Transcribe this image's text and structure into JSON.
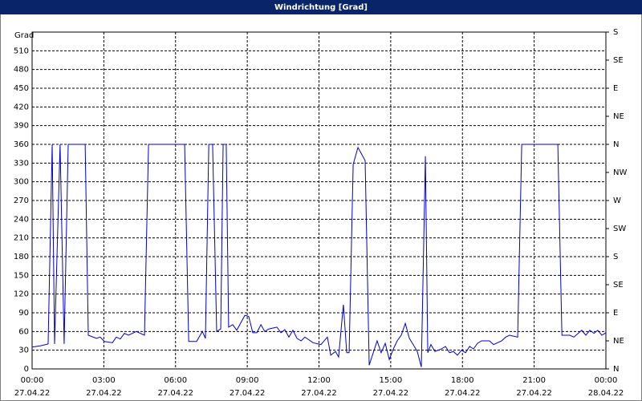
{
  "chart_data": {
    "type": "line",
    "title": "Windrichtung [Grad]",
    "ylabel": "Grad",
    "x": [
      0,
      0.34,
      0.67,
      0.84,
      0.94,
      1.17,
      1.34,
      1.51,
      2.22,
      2.35,
      2.69,
      2.85,
      3.02,
      3.36,
      3.52,
      3.69,
      3.86,
      4.03,
      4.36,
      4.7,
      4.87,
      6.38,
      6.55,
      6.88,
      7.12,
      7.25,
      7.39,
      7.55,
      7.72,
      7.89,
      7.99,
      8.12,
      8.22,
      8.39,
      8.56,
      8.9,
      9.06,
      9.23,
      9.4,
      9.57,
      9.73,
      9.9,
      10.24,
      10.41,
      10.57,
      10.74,
      10.91,
      11.08,
      11.25,
      11.41,
      11.75,
      12.08,
      12.35,
      12.49,
      12.69,
      12.82,
      13.02,
      13.16,
      13.26,
      13.43,
      13.63,
      13.93,
      14.1,
      14.27,
      14.43,
      14.6,
      14.77,
      14.94,
      15.11,
      15.27,
      15.44,
      15.61,
      15.78,
      15.94,
      16.11,
      16.28,
      16.45,
      16.55,
      16.68,
      16.85,
      17.12,
      17.29,
      17.46,
      17.62,
      17.79,
      17.96,
      18.13,
      18.3,
      18.46,
      18.63,
      18.8,
      19.13,
      19.3,
      19.64,
      19.81,
      19.97,
      20.31,
      20.48,
      21.99,
      22.16,
      22.49,
      22.66,
      22.99,
      23.16,
      23.33,
      23.5,
      23.66,
      23.83,
      24
    ],
    "series": [
      {
        "name": "Windrichtung",
        "color": "#0000cc",
        "values": [
          35,
          37,
          40,
          360,
          40,
          360,
          40,
          360,
          360,
          54,
          49,
          51,
          44,
          42,
          51,
          48,
          57,
          54,
          60,
          54,
          360,
          360,
          44,
          44,
          60,
          49,
          360,
          360,
          60,
          64,
          360,
          360,
          67,
          71,
          62,
          86,
          84,
          58,
          58,
          71,
          60,
          64,
          67,
          58,
          63,
          51,
          62,
          49,
          45,
          51,
          42,
          39,
          51,
          22,
          28,
          19,
          103,
          26,
          26,
          328,
          355,
          334,
          6,
          26,
          45,
          26,
          41,
          15,
          32,
          45,
          54,
          73,
          49,
          39,
          28,
          3,
          341,
          26,
          39,
          28,
          32,
          36,
          26,
          28,
          22,
          30,
          26,
          36,
          32,
          41,
          45,
          45,
          39,
          45,
          51,
          54,
          51,
          360,
          360,
          54,
          54,
          51,
          62,
          54,
          62,
          57,
          62,
          54,
          58
        ]
      }
    ],
    "xlim": [
      0,
      24
    ],
    "xticks": [
      {
        "value": 0,
        "label": "00:00"
      },
      {
        "value": 3,
        "label": "03:00"
      },
      {
        "value": 6,
        "label": "06:00"
      },
      {
        "value": 9,
        "label": "09:00"
      },
      {
        "value": 12,
        "label": "12:00"
      },
      {
        "value": 15,
        "label": "15:00"
      },
      {
        "value": 18,
        "label": "18:00"
      },
      {
        "value": 21,
        "label": "21:00"
      },
      {
        "value": 24,
        "label": "00:00"
      }
    ],
    "xtick_dates": [
      "27.04.22",
      "27.04.22",
      "27.04.22",
      "27.04.22",
      "27.04.22",
      "27.04.22",
      "27.04.22",
      "27.04.22",
      "28.04.22"
    ],
    "ylim": [
      0,
      540
    ],
    "yticks": [
      0,
      30,
      60,
      90,
      120,
      150,
      180,
      210,
      240,
      270,
      300,
      330,
      360,
      390,
      420,
      450,
      480,
      510
    ],
    "y2lim": [
      0,
      540
    ],
    "y2ticks": [
      {
        "value": 0,
        "label": "N"
      },
      {
        "value": 45,
        "label": "NE"
      },
      {
        "value": 90,
        "label": "E"
      },
      {
        "value": 135,
        "label": "SE"
      },
      {
        "value": 180,
        "label": "S"
      },
      {
        "value": 225,
        "label": "SW"
      },
      {
        "value": 270,
        "label": "W"
      },
      {
        "value": 315,
        "label": "NW"
      },
      {
        "value": 360,
        "label": "N"
      },
      {
        "value": 405,
        "label": "NE"
      },
      {
        "value": 450,
        "label": "E"
      },
      {
        "value": 495,
        "label": "SE"
      },
      {
        "value": 540,
        "label": "S"
      }
    ],
    "grid": true
  }
}
